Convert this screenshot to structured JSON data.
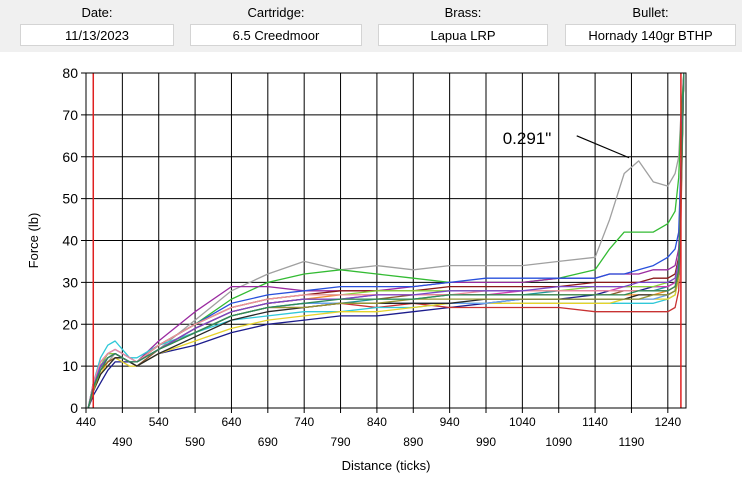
{
  "header": {
    "date_label": "Date:",
    "date_value": "11/13/2023",
    "cartridge_label": "Cartridge:",
    "cartridge_value": "6.5 Creedmoor",
    "brass_label": "Brass:",
    "brass_value": "Lapua LRP",
    "bullet_label": "Bullet:",
    "bullet_value": "Hornady 140gr BTHP"
  },
  "chart_data": {
    "type": "line",
    "title": "",
    "xlabel": "Distance (ticks)",
    "ylabel": "Force (lb)",
    "xlim": [
      440,
      1265
    ],
    "ylim": [
      0,
      80
    ],
    "x_ticks_upper": [
      440,
      540,
      640,
      740,
      840,
      940,
      1040,
      1140,
      1240
    ],
    "x_ticks_lower": [
      490,
      590,
      690,
      790,
      890,
      990,
      1090,
      1190
    ],
    "y_ticks": [
      0,
      10,
      20,
      30,
      40,
      50,
      60,
      70,
      80
    ],
    "grid": true,
    "vertical_markers": [
      {
        "name": "start-marker",
        "x": 450,
        "color": "#e02020"
      },
      {
        "name": "end-marker",
        "x": 1258,
        "color": "#e02020"
      }
    ],
    "annotation": {
      "text": "0.291\"",
      "x": 1195,
      "y": 60
    },
    "x": [
      443,
      450,
      460,
      470,
      480,
      490,
      500,
      510,
      540,
      590,
      640,
      690,
      740,
      790,
      840,
      890,
      940,
      990,
      1040,
      1090,
      1140,
      1160,
      1180,
      1200,
      1220,
      1240,
      1250,
      1255,
      1258,
      1262
    ],
    "series": [
      {
        "name": "gray",
        "color": "#a0a0a0",
        "values": [
          0,
          4,
          9,
          11,
          13,
          12,
          11,
          10,
          14,
          21,
          28,
          32,
          35,
          33,
          34,
          33,
          34,
          34,
          34,
          35,
          36,
          45,
          56,
          59,
          54,
          53,
          56,
          60,
          70,
          80
        ]
      },
      {
        "name": "green-a",
        "color": "#33bb33",
        "values": [
          0,
          5,
          10,
          12,
          13,
          12,
          11,
          11,
          15,
          20,
          26,
          30,
          32,
          33,
          32,
          31,
          30,
          30,
          30,
          31,
          33,
          38,
          42,
          42,
          42,
          44,
          47,
          55,
          68,
          80
        ]
      },
      {
        "name": "navy",
        "color": "#1c1c8c",
        "values": [
          0,
          3,
          6,
          9,
          11,
          11,
          11,
          10,
          13,
          15,
          18,
          20,
          21,
          22,
          22,
          23,
          24,
          25,
          26,
          26,
          27,
          28,
          28,
          28,
          29,
          29,
          30,
          34,
          50,
          80
        ]
      },
      {
        "name": "purple",
        "color": "#9a2aa0",
        "values": [
          0,
          6,
          11,
          13,
          13,
          12,
          11,
          11,
          16,
          23,
          29,
          29,
          28,
          28,
          28,
          29,
          30,
          30,
          30,
          31,
          31,
          32,
          32,
          32,
          33,
          33,
          34,
          38,
          55,
          80
        ]
      },
      {
        "name": "red",
        "color": "#c83232",
        "values": [
          0,
          4,
          8,
          11,
          12,
          12,
          11,
          11,
          14,
          18,
          22,
          24,
          24,
          25,
          24,
          25,
          24,
          24,
          24,
          24,
          23,
          23,
          23,
          23,
          23,
          23,
          24,
          28,
          45,
          80
        ]
      },
      {
        "name": "cyan",
        "color": "#30c8d8",
        "values": [
          0,
          6,
          12,
          15,
          16,
          14,
          12,
          12,
          15,
          18,
          21,
          22,
          23,
          23,
          24,
          24,
          25,
          25,
          25,
          25,
          25,
          25,
          25,
          25,
          25,
          26,
          27,
          31,
          48,
          80
        ]
      },
      {
        "name": "orange",
        "color": "#f08c28",
        "values": [
          0,
          5,
          10,
          12,
          13,
          12,
          11,
          11,
          14,
          19,
          23,
          25,
          26,
          27,
          27,
          27,
          27,
          27,
          27,
          27,
          27,
          27,
          27,
          27,
          27,
          28,
          29,
          33,
          50,
          80
        ]
      },
      {
        "name": "blue",
        "color": "#2850dc",
        "values": [
          0,
          5,
          10,
          13,
          14,
          13,
          12,
          11,
          15,
          20,
          25,
          27,
          28,
          29,
          29,
          29,
          30,
          31,
          31,
          31,
          31,
          32,
          32,
          33,
          34,
          36,
          38,
          42,
          58,
          80
        ]
      },
      {
        "name": "yellow",
        "color": "#e6d22a",
        "values": [
          0,
          4,
          8,
          11,
          12,
          11,
          10,
          10,
          13,
          16,
          19,
          21,
          22,
          23,
          23,
          24,
          25,
          25,
          25,
          25,
          25,
          25,
          26,
          26,
          26,
          26,
          27,
          31,
          48,
          80
        ]
      },
      {
        "name": "teal",
        "color": "#1e9696",
        "values": [
          0,
          5,
          9,
          12,
          13,
          12,
          11,
          11,
          14,
          18,
          22,
          24,
          25,
          25,
          26,
          26,
          27,
          27,
          27,
          28,
          28,
          28,
          28,
          28,
          28,
          29,
          30,
          34,
          50,
          80
        ]
      },
      {
        "name": "dark-red",
        "color": "#8b1a1a",
        "values": [
          0,
          5,
          10,
          12,
          13,
          12,
          11,
          11,
          15,
          20,
          24,
          26,
          27,
          28,
          28,
          28,
          29,
          29,
          29,
          29,
          30,
          30,
          30,
          30,
          31,
          31,
          32,
          36,
          52,
          80
        ]
      },
      {
        "name": "magenta",
        "color": "#d23cb4",
        "values": [
          0,
          4,
          9,
          12,
          13,
          12,
          11,
          11,
          14,
          19,
          23,
          25,
          26,
          26,
          27,
          27,
          27,
          27,
          28,
          28,
          28,
          28,
          29,
          29,
          29,
          29,
          30,
          34,
          50,
          80
        ]
      },
      {
        "name": "lime",
        "color": "#8cd23c",
        "values": [
          0,
          5,
          10,
          13,
          13,
          12,
          11,
          11,
          15,
          20,
          24,
          26,
          27,
          27,
          28,
          28,
          28,
          28,
          28,
          28,
          29,
          29,
          29,
          29,
          29,
          30,
          31,
          35,
          52,
          80
        ]
      },
      {
        "name": "brown",
        "color": "#8b5a2b",
        "values": [
          0,
          4,
          9,
          11,
          12,
          12,
          11,
          10,
          14,
          19,
          23,
          25,
          26,
          26,
          26,
          27,
          27,
          27,
          27,
          27,
          27,
          27,
          28,
          28,
          28,
          28,
          29,
          33,
          50,
          80
        ]
      },
      {
        "name": "light-blue",
        "color": "#64a0f0",
        "values": [
          0,
          5,
          10,
          12,
          13,
          12,
          11,
          11,
          14,
          18,
          22,
          24,
          25,
          25,
          25,
          25,
          25,
          25,
          26,
          26,
          26,
          26,
          26,
          26,
          26,
          27,
          28,
          32,
          49,
          80
        ]
      },
      {
        "name": "black",
        "color": "#282828",
        "values": [
          0,
          4,
          8,
          10,
          12,
          12,
          11,
          10,
          13,
          17,
          21,
          23,
          24,
          25,
          25,
          25,
          25,
          26,
          26,
          26,
          26,
          26,
          26,
          27,
          27,
          27,
          28,
          32,
          49,
          80
        ]
      },
      {
        "name": "pink",
        "color": "#f08ca0",
        "values": [
          0,
          6,
          11,
          13,
          14,
          13,
          12,
          11,
          15,
          20,
          24,
          26,
          27,
          27,
          27,
          27,
          27,
          28,
          28,
          28,
          28,
          28,
          28,
          28,
          28,
          28,
          29,
          33,
          50,
          80
        ]
      },
      {
        "name": "olive",
        "color": "#969632",
        "values": [
          0,
          4,
          9,
          12,
          13,
          12,
          11,
          11,
          14,
          18,
          22,
          24,
          24,
          25,
          25,
          26,
          26,
          26,
          26,
          26,
          26,
          26,
          26,
          26,
          27,
          27,
          28,
          32,
          49,
          80
        ]
      },
      {
        "name": "violet",
        "color": "#7846c8",
        "values": [
          0,
          5,
          10,
          12,
          13,
          12,
          11,
          11,
          14,
          19,
          23,
          25,
          26,
          26,
          27,
          27,
          28,
          28,
          28,
          29,
          29,
          29,
          29,
          30,
          30,
          30,
          31,
          35,
          52,
          80
        ]
      },
      {
        "name": "sea-green",
        "color": "#2e8b57",
        "values": [
          0,
          5,
          9,
          12,
          13,
          12,
          11,
          11,
          14,
          18,
          22,
          24,
          25,
          26,
          26,
          26,
          27,
          27,
          27,
          27,
          27,
          27,
          27,
          28,
          28,
          28,
          29,
          33,
          50,
          80
        ]
      }
    ]
  }
}
